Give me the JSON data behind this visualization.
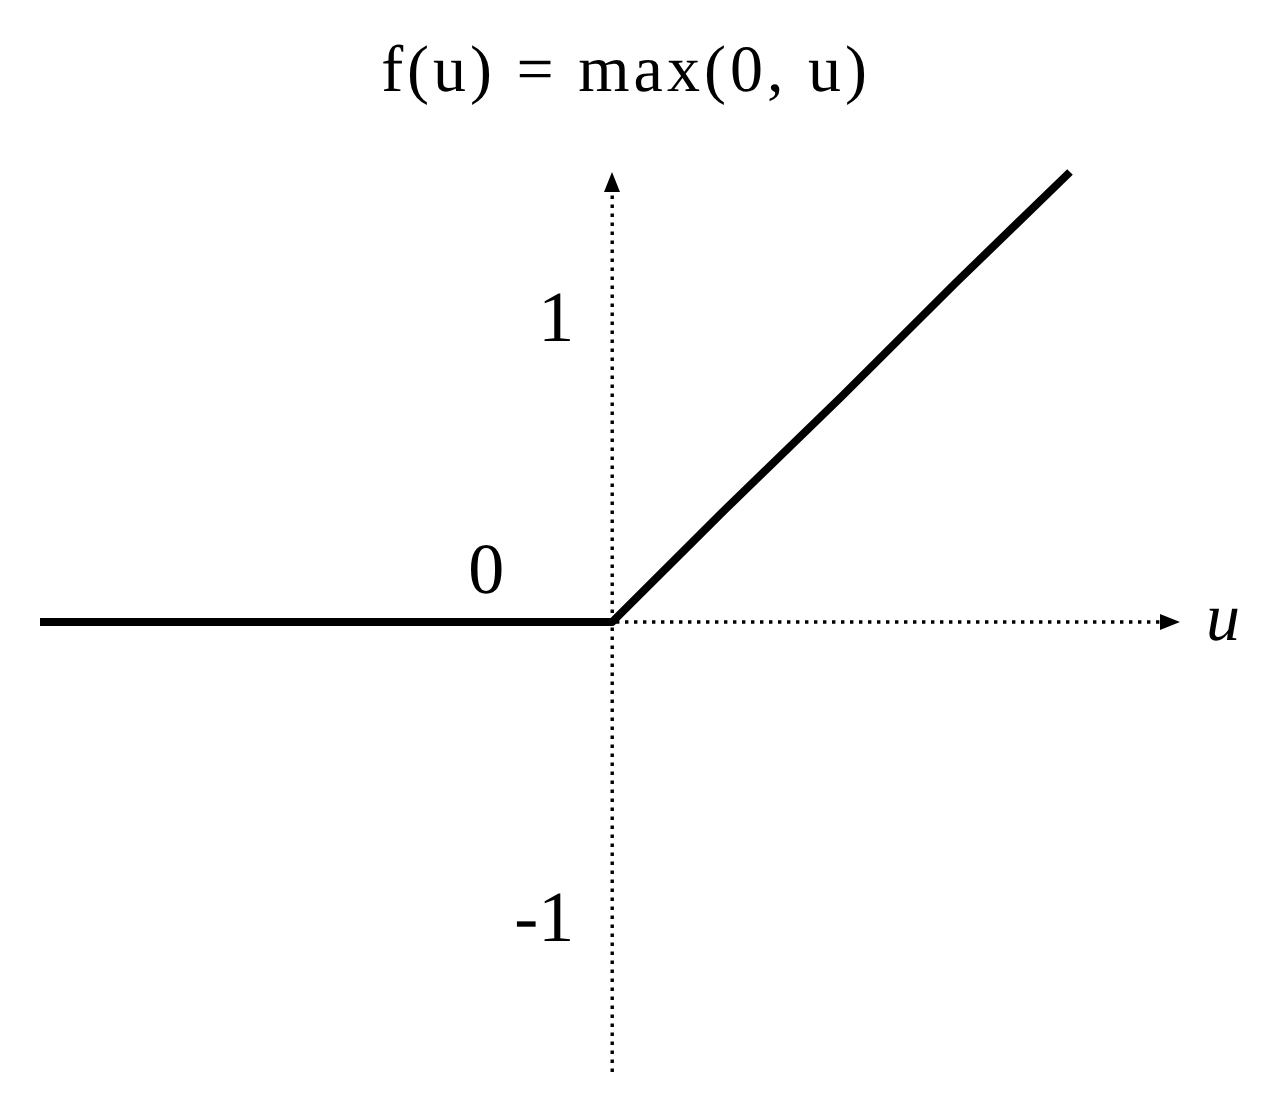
{
  "chart_data": {
    "type": "line",
    "title": "f(u) = max(0, u)",
    "xlabel": "u",
    "categories": [
      null,
      null,
      null,
      null,
      null,
      null,
      null,
      null,
      null,
      null
    ],
    "series": [
      {
        "color": "#000000",
        "values": [
          0,
          0,
          0,
          0,
          0,
          0,
          0.38,
          0.75,
          1.13,
          1.5
        ]
      }
    ],
    "ylim": [
      -1.5,
      1.5
    ],
    "yticks": [
      -1,
      1
    ],
    "annotations": [
      {
        "text": "0",
        "y": 0
      }
    ],
    "marker": "none",
    "line_style": "solid",
    "tick_labels": "y"
  }
}
